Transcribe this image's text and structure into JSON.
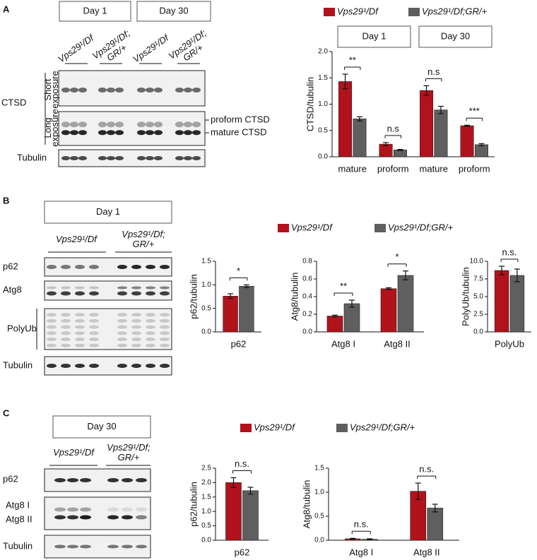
{
  "chart_data": [
    {
      "type": "bar",
      "ylabel": "CTSD/tubulin",
      "groups": [
        "Day 1",
        "Day 30"
      ],
      "categories": [
        "mature",
        "proform",
        "mature",
        "proform"
      ],
      "series": [
        {
          "name": "Vps29¹/Df",
          "color": "#b2121b",
          "values": [
            1.43,
            0.24,
            1.26,
            0.59
          ],
          "errors": [
            0.14,
            0.03,
            0.09,
            0.01
          ]
        },
        {
          "name": "Vps29¹/Df;GR/+",
          "color": "#5f5f5f",
          "values": [
            0.72,
            0.13,
            0.89,
            0.23
          ],
          "errors": [
            0.04,
            0.01,
            0.07,
            0.02
          ]
        }
      ],
      "significance": [
        "**",
        "n.s",
        "n.s",
        "***"
      ],
      "ylim": [
        0,
        2
      ],
      "yticks": [
        {
          "value": 0,
          "label": "0.0"
        },
        0.5,
        {
          "value": 1,
          "label": "1.0"
        },
        1.5,
        {
          "value": 2,
          "label": "2.0"
        }
      ]
    },
    {
      "type": "bar",
      "ylabel": "p62/tubulin",
      "categories": [
        "p62"
      ],
      "series": [
        {
          "color": "#b2121b",
          "values": [
            0.76
          ],
          "errors": [
            0.05
          ]
        },
        {
          "color": "#5f5f5f",
          "values": [
            0.97
          ],
          "errors": [
            0.03
          ]
        }
      ],
      "significance": [
        "*"
      ],
      "ylim": [
        0,
        1.5
      ],
      "yticks": [
        {
          "value": 0,
          "label": "0.0"
        },
        0.5,
        {
          "value": 1,
          "label": "1.0"
        },
        1.5
      ]
    },
    {
      "type": "bar",
      "ylabel": "Atg8/tubulin",
      "categories": [
        "Atg8 I",
        "Atg8 II"
      ],
      "series": [
        {
          "name": "Vps29¹/Df",
          "color": "#b2121b",
          "values": [
            0.18,
            0.49
          ],
          "errors": [
            0.01,
            0.01
          ]
        },
        {
          "name": "Vps29¹/Df;GR/+",
          "color": "#5f5f5f",
          "values": [
            0.32,
            0.64
          ],
          "errors": [
            0.04,
            0.05
          ]
        }
      ],
      "significance": [
        "**",
        "*"
      ],
      "ylim": [
        0,
        0.8
      ],
      "yticks": [
        {
          "value": 0,
          "label": "0.0"
        },
        0.2,
        0.4,
        0.6,
        0.8
      ]
    },
    {
      "type": "bar",
      "ylabel": "PolyUb/tubulin",
      "categories": [
        "PolyUb"
      ],
      "series": [
        {
          "color": "#b2121b",
          "values": [
            8.7
          ],
          "errors": [
            0.6
          ]
        },
        {
          "color": "#5f5f5f",
          "values": [
            8.0
          ],
          "errors": [
            0.9
          ]
        }
      ],
      "significance": [
        "n.s."
      ],
      "ylim": [
        0,
        10
      ],
      "yticks": [
        {
          "value": 0,
          "label": "0.0"
        },
        2.5,
        {
          "value": 5,
          "label": "5.0"
        },
        7.5,
        {
          "value": 10,
          "label": "10.0"
        }
      ]
    },
    {
      "type": "bar",
      "ylabel": "p62/tubulin",
      "categories": [
        "p62"
      ],
      "series": [
        {
          "name": "Vps29¹/Df",
          "color": "#b2121b",
          "values": [
            2.0
          ],
          "errors": [
            0.17
          ]
        },
        {
          "name": "Vps29¹/Df;GR/+",
          "color": "#5f5f5f",
          "values": [
            1.72
          ],
          "errors": [
            0.12
          ]
        }
      ],
      "significance": [
        "n.s."
      ],
      "ylim": [
        0,
        2.5
      ],
      "yticks": [
        {
          "value": 0,
          "label": "0.0"
        },
        0.5,
        {
          "value": 1,
          "label": "1.0"
        },
        1.5,
        {
          "value": 2,
          "label": "2.0"
        },
        2.5
      ]
    },
    {
      "type": "bar",
      "ylabel": "Atg8/tubulin",
      "categories": [
        "Atg8 I",
        "Atg8 II"
      ],
      "series": [
        {
          "color": "#b2121b",
          "values": [
            0.03,
            1.02
          ],
          "errors": [
            0.01,
            0.17
          ]
        },
        {
          "color": "#5f5f5f",
          "values": [
            0.02,
            0.67
          ],
          "errors": [
            0.01,
            0.08
          ]
        }
      ],
      "significance": [
        "n.s.",
        "n.s."
      ],
      "ylim": [
        0,
        1.5
      ],
      "yticks": [
        {
          "value": 0,
          "label": "0.0"
        },
        0.5,
        {
          "value": 1,
          "label": "1.0"
        },
        1.5
      ]
    }
  ],
  "blots": {
    "A": {
      "label": "A",
      "days": [
        "Day 1",
        "Day 30"
      ],
      "lanes": [
        [
          "Vps29¹/Df"
        ],
        [
          "Vps29¹/Df;",
          "GR/+"
        ],
        [
          "Vps29¹/Df"
        ],
        [
          "Vps29¹/Df;",
          "GR/+"
        ]
      ],
      "protein": "CTSD",
      "exposures": [
        [
          "Short",
          "exposure"
        ],
        [
          "Long",
          "exposure"
        ]
      ],
      "bands": [
        "proform CTSD",
        "mature CTSD"
      ],
      "loading": "Tubulin"
    },
    "B": {
      "label": "B",
      "day": "Day 1",
      "lanes": [
        [
          "Vps29¹/Df"
        ],
        [
          "Vps29¹/Df;",
          "GR/+"
        ]
      ],
      "rows": [
        "p62",
        "Atg8",
        "PolyUb",
        "Tubulin"
      ]
    },
    "C": {
      "label": "C",
      "day": "Day 30",
      "lanes": [
        [
          "Vps29¹/Df"
        ],
        [
          "Vps29¹/Df;",
          "GR/+"
        ]
      ],
      "rows": [
        "p62",
        "Atg8 I",
        "Atg8 II",
        "Tubulin"
      ]
    }
  }
}
